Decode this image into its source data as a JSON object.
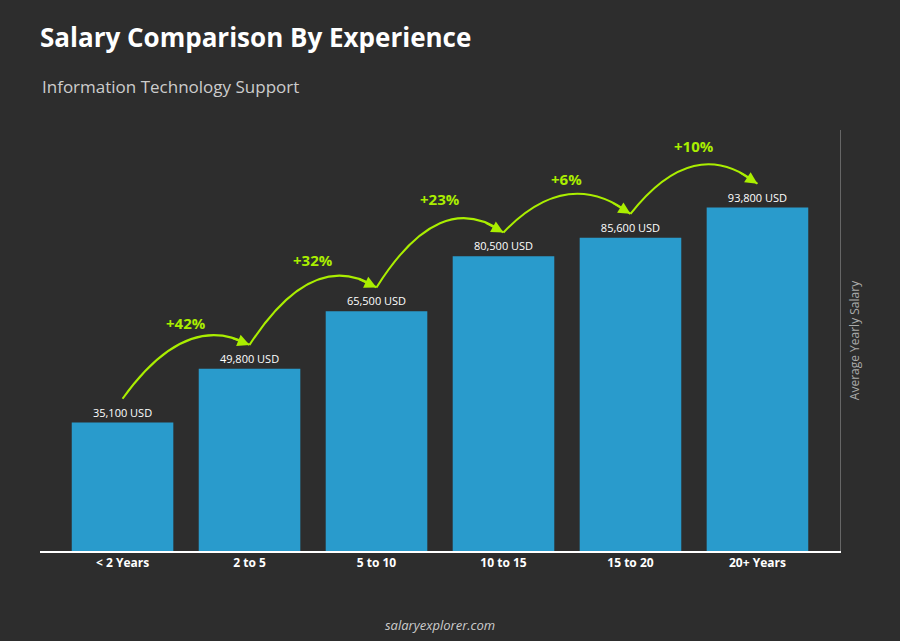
{
  "chart_data": {
    "type": "bar",
    "title": "Salary Comparison By Experience",
    "subtitle": "Information Technology Support",
    "categories": [
      "< 2 Years",
      "2 to 5",
      "5 to 10",
      "10 to 15",
      "15 to 20",
      "20+ Years"
    ],
    "values": [
      35100,
      49800,
      65500,
      80500,
      85600,
      93800
    ],
    "value_labels": [
      "35,100 USD",
      "49,800 USD",
      "65,500 USD",
      "80,500 USD",
      "85,600 USD",
      "93,800 USD"
    ],
    "data_labels": true,
    "color": "#29ABE2",
    "ylabel": "Average Yearly Salary",
    "ylim": [
      0,
      115000
    ],
    "yticks": [],
    "tick_labels": "x",
    "grid": false,
    "annotations": [
      {
        "text": "+42%",
        "from": "< 2 Years",
        "to": "2 to 5"
      },
      {
        "text": "+32%",
        "from": "2 to 5",
        "to": "5 to 10"
      },
      {
        "text": "+23%",
        "from": "5 to 10",
        "to": "10 to 15"
      },
      {
        "text": "+6%",
        "from": "10 to 15",
        "to": "15 to 20"
      },
      {
        "text": "+10%",
        "from": "15 to 20",
        "to": "20+ Years"
      },
      {
        "text": "salaryexplorer.com"
      }
    ]
  }
}
